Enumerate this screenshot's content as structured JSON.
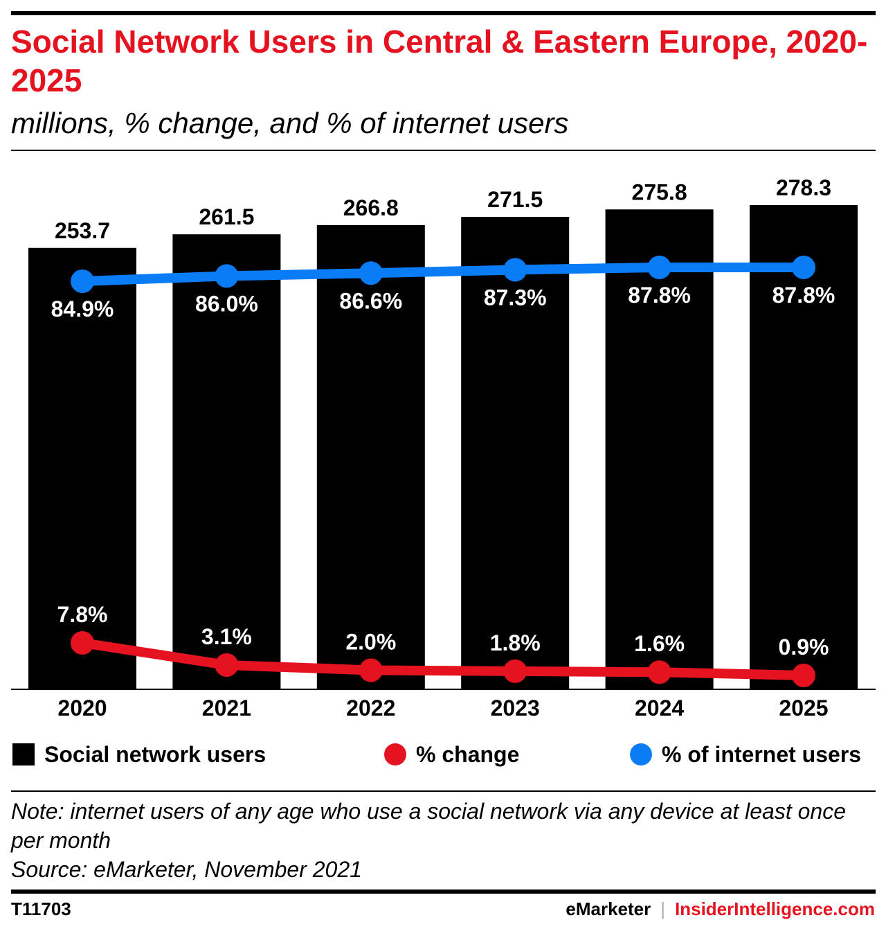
{
  "header": {
    "title": "Social Network Users in Central & Eastern Europe, 2020-2025",
    "subtitle": "millions, % change, and % of internet users"
  },
  "colors": {
    "title": "#e5131f",
    "bars": "#000000",
    "pct_change": "#e5131f",
    "pct_internet": "#0a7cf5"
  },
  "chart_data": {
    "type": "bar",
    "categories": [
      "2020",
      "2021",
      "2022",
      "2023",
      "2024",
      "2025"
    ],
    "series": [
      {
        "name": "Social network users",
        "type": "bar",
        "values": [
          253.7,
          261.5,
          266.8,
          271.5,
          275.8,
          278.3
        ],
        "labels": [
          "253.7",
          "261.5",
          "266.8",
          "271.5",
          "275.8",
          "278.3"
        ]
      },
      {
        "name": "% of internet users",
        "type": "line",
        "values": [
          84.9,
          86.0,
          86.6,
          87.3,
          87.8,
          87.8
        ],
        "labels": [
          "84.9%",
          "86.0%",
          "86.6%",
          "87.3%",
          "87.8%",
          "87.8%"
        ]
      },
      {
        "name": "% change",
        "type": "line",
        "values": [
          7.8,
          3.1,
          2.0,
          1.8,
          1.6,
          0.9
        ],
        "labels": [
          "7.8%",
          "3.1%",
          "2.0%",
          "1.8%",
          "1.6%",
          "0.9%"
        ]
      }
    ],
    "legend_position": "bottom",
    "grid": false
  },
  "legend": {
    "bars": "Social network users",
    "pct_change": "% change",
    "pct_internet": "% of internet users"
  },
  "footer": {
    "note": "Note: internet users of any age who use a social network via any device at least once per month",
    "source": "Source: eMarketer, November 2021",
    "chart_id": "T11703",
    "brand_a": "eMarketer",
    "separator": "|",
    "brand_b": "InsiderIntelligence.com"
  }
}
